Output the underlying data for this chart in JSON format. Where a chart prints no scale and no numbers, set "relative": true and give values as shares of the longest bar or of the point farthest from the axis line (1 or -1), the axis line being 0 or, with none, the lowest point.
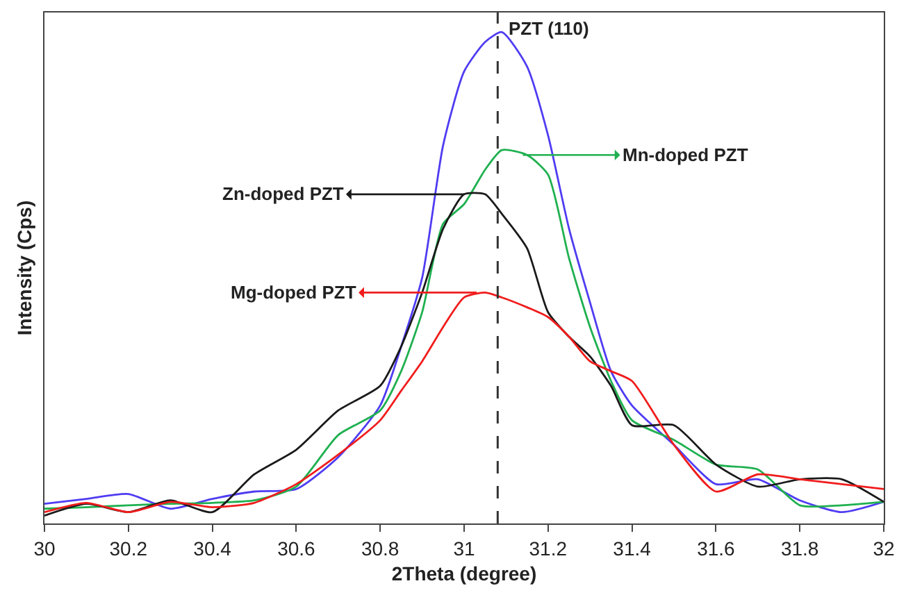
{
  "chart_data": {
    "type": "line",
    "relative": true,
    "xlabel": "2Theta (degree)",
    "ylabel": "Intensity (Cps)",
    "x": [
      30.0,
      30.1,
      30.2,
      30.3,
      30.4,
      30.5,
      30.6,
      30.7,
      30.8,
      30.85,
      30.9,
      30.95,
      31.0,
      31.05,
      31.09,
      31.15,
      31.2,
      31.25,
      31.3,
      31.35,
      31.4,
      31.5,
      31.6,
      31.7,
      31.8,
      31.9,
      32.0
    ],
    "xlim": [
      30,
      32
    ],
    "xticks": [
      30,
      30.2,
      30.4,
      30.6,
      30.8,
      31,
      31.2,
      31.4,
      31.6,
      31.8,
      32
    ],
    "marker": "none",
    "line_style": "solid",
    "series": [
      {
        "color": "#4f3cf2",
        "values": [
          0.04,
          0.05,
          0.06,
          0.03,
          0.05,
          0.065,
          0.07,
          0.135,
          0.24,
          0.36,
          0.5,
          0.77,
          0.92,
          0.98,
          1.0,
          0.93,
          0.79,
          0.6,
          0.45,
          0.31,
          0.24,
          0.16,
          0.08,
          0.09,
          0.047,
          0.023,
          0.044
        ]
      },
      {
        "color": "#1fb050",
        "values": [
          0.03,
          0.033,
          0.037,
          0.04,
          0.042,
          0.047,
          0.075,
          0.18,
          0.23,
          0.31,
          0.43,
          0.61,
          0.65,
          0.72,
          0.76,
          0.75,
          0.71,
          0.54,
          0.4,
          0.29,
          0.21,
          0.17,
          0.12,
          0.11,
          0.037,
          0.037,
          0.044
        ]
      },
      {
        "color": "#1a1a1a",
        "values": [
          0.016,
          0.04,
          0.023,
          0.047,
          0.023,
          0.1,
          0.15,
          0.23,
          0.28,
          0.36,
          0.47,
          0.6,
          0.67,
          0.67,
          0.63,
          0.56,
          0.43,
          0.38,
          0.34,
          0.28,
          0.2,
          0.2,
          0.12,
          0.075,
          0.09,
          0.09,
          0.044
        ]
      },
      {
        "color": "#f01c1c",
        "values": [
          0.023,
          0.042,
          0.023,
          0.044,
          0.033,
          0.042,
          0.08,
          0.14,
          0.21,
          0.27,
          0.33,
          0.4,
          0.46,
          0.47,
          0.46,
          0.44,
          0.42,
          0.38,
          0.33,
          0.31,
          0.29,
          0.16,
          0.065,
          0.1,
          0.09,
          0.08,
          0.07
        ]
      }
    ],
    "ref_lines": [
      {
        "axis": "x",
        "value": 31.08,
        "label": "PZT (110)",
        "color": "#333333",
        "line_style": "dashed"
      }
    ],
    "annotations": [
      {
        "text": "Mn-doped PZT",
        "x": 31.14,
        "y": 0.75
      },
      {
        "text": "Zn-doped PZT",
        "x": 31.0,
        "y": 0.67
      },
      {
        "text": "Mg-doped PZT",
        "x": 31.03,
        "y": 0.47
      }
    ]
  }
}
